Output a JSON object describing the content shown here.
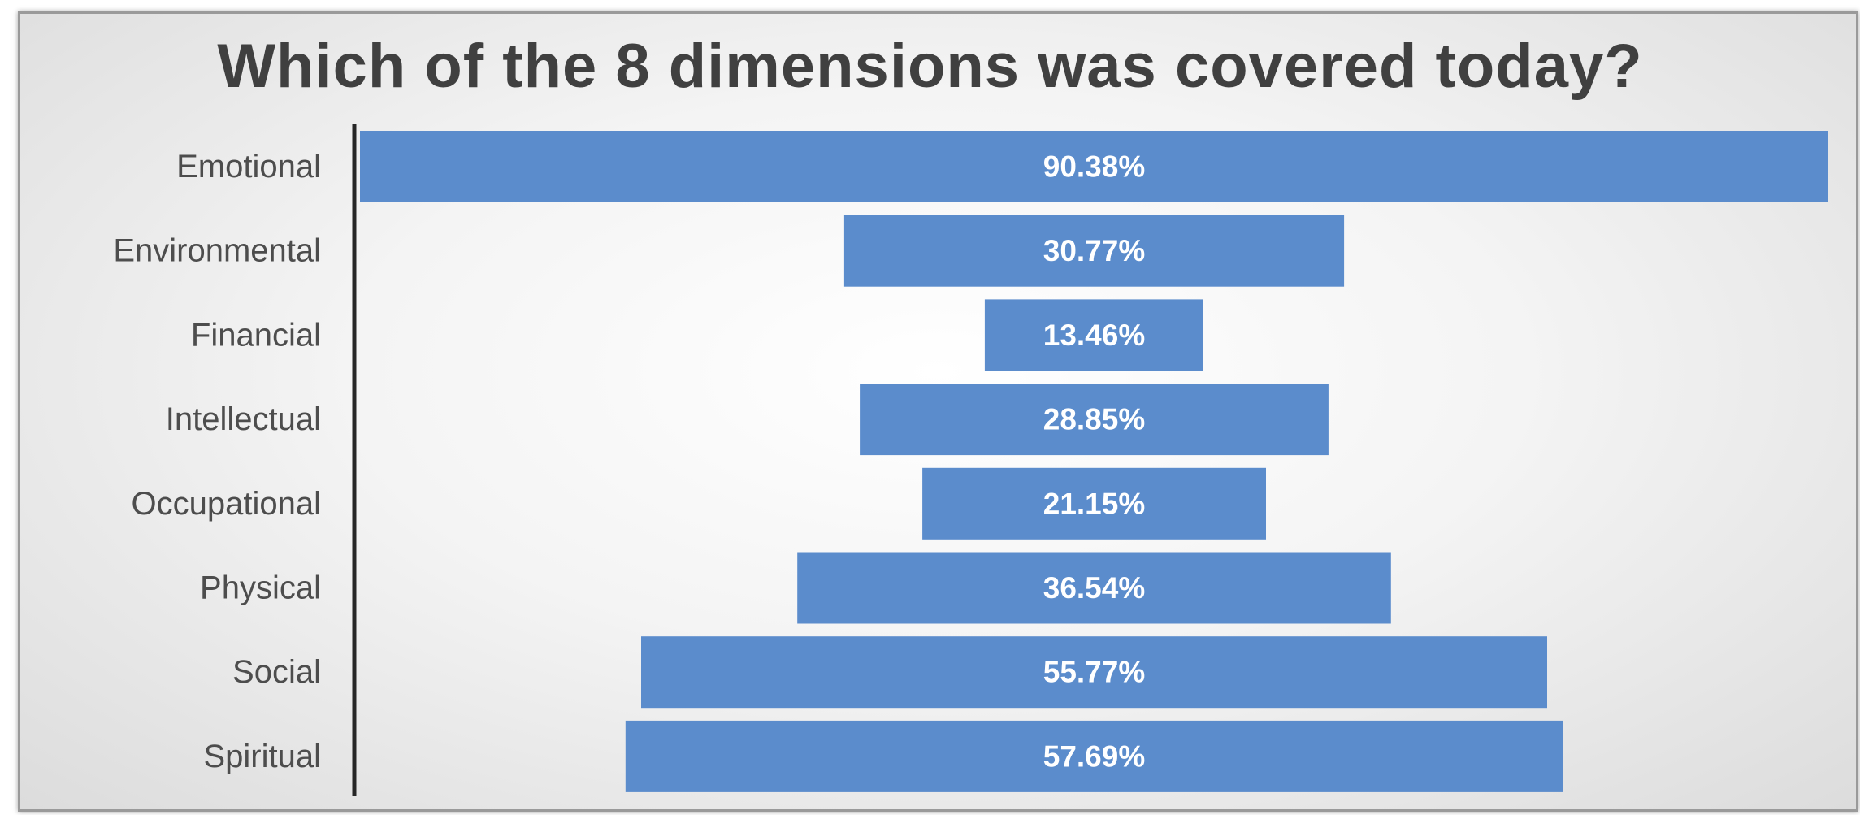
{
  "chart_data": {
    "type": "bar",
    "orientation": "horizontal",
    "layout": "centered-funnel",
    "title": "Which of the 8 dimensions was covered today?",
    "categories": [
      "Emotional",
      "Environmental",
      "Financial",
      "Intellectual",
      "Occupational",
      "Physical",
      "Social",
      "Spiritual"
    ],
    "values": [
      90.38,
      30.77,
      13.46,
      28.85,
      21.15,
      36.54,
      55.77,
      57.69
    ],
    "value_labels": [
      "90.38%",
      "30.77%",
      "13.46%",
      "28.85%",
      "21.15%",
      "36.54%",
      "55.77%",
      "57.69%"
    ],
    "xlim": [
      0,
      90.38
    ],
    "bar_color": "#5b8ccc",
    "label_color": "#ffffff",
    "grid": false,
    "legend": "none"
  }
}
